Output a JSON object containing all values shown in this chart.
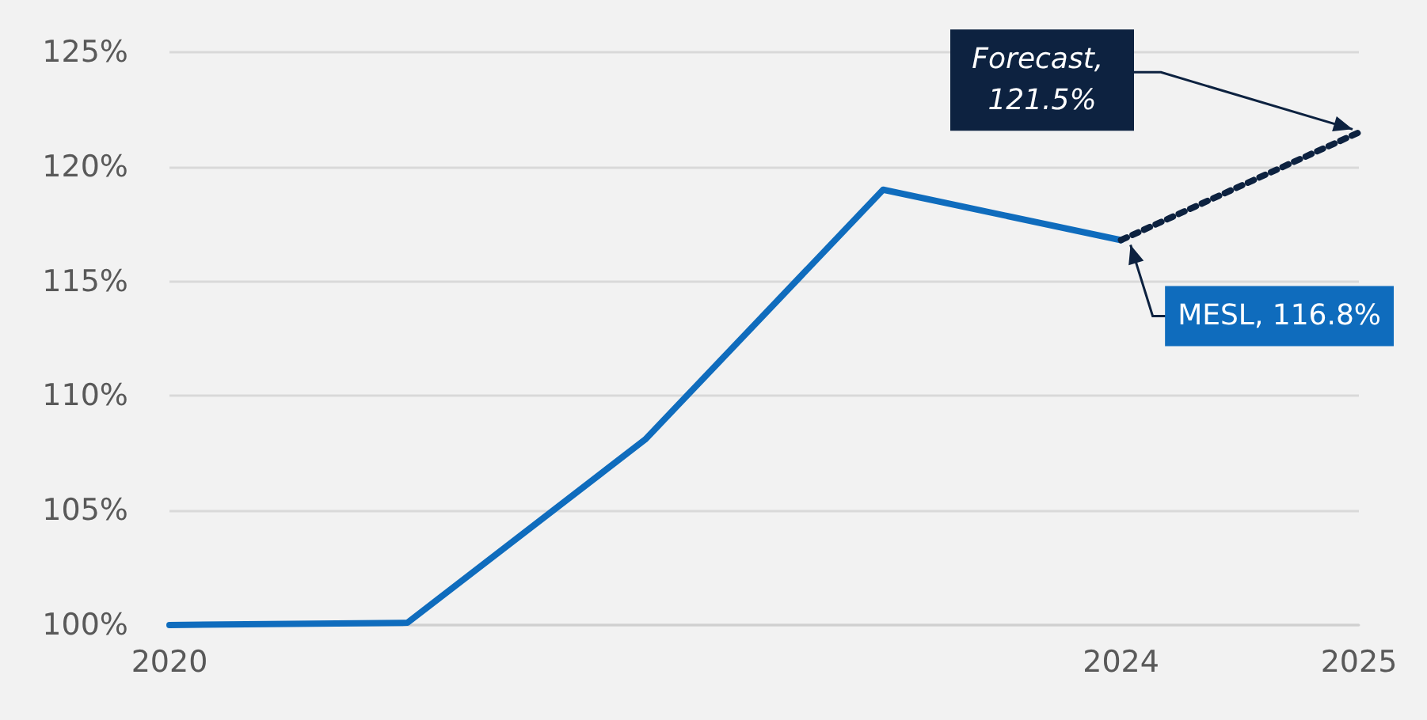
{
  "chart_data": {
    "type": "line",
    "series": [
      {
        "color": "#0f6cbd",
        "x": [
          2020,
          2021,
          2022,
          2023,
          2024
        ],
        "values": [
          100,
          100.1,
          108.1,
          119.0,
          116.8
        ],
        "line_style": "solid"
      },
      {
        "color": "#0d2240",
        "x": [
          2024,
          2025
        ],
        "values": [
          116.8,
          121.5
        ],
        "line_style": "dotted"
      }
    ],
    "xlim": [
      2020,
      2025
    ],
    "xticks": [
      2020,
      2024,
      2025
    ],
    "ylim": [
      100,
      125
    ],
    "yticks": [
      {
        "value": 100,
        "label": "100%"
      },
      {
        "value": 105,
        "label": "105%"
      },
      {
        "value": 110,
        "label": "110%"
      },
      {
        "value": 115,
        "label": "115%"
      },
      {
        "value": 120,
        "label": "120%"
      },
      {
        "value": 125,
        "label": "125%"
      }
    ],
    "grid": "y",
    "marker": "none",
    "annotations": [
      {
        "text": "MESL, 116.8%",
        "x": 2024,
        "y": 116.8
      },
      {
        "text": "Forecast, 121.5%",
        "x": 2025,
        "y": 121.5
      }
    ]
  }
}
